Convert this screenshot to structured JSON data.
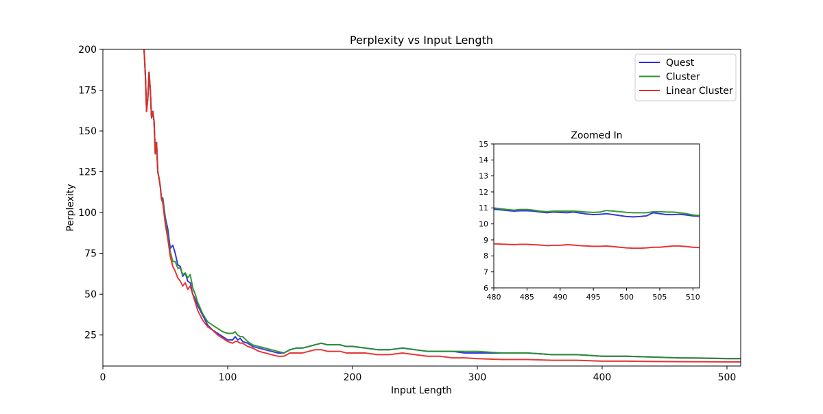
{
  "chart_data": [
    {
      "type": "line",
      "title": "Perplexity vs Input Length",
      "xlabel": "Input Length",
      "ylabel": "Perplexity",
      "xlim": [
        0,
        511
      ],
      "ylim": [
        6,
        200
      ],
      "xticks": [
        0,
        100,
        200,
        300,
        400,
        500
      ],
      "yticks": [
        25,
        50,
        75,
        100,
        125,
        150,
        175,
        200
      ],
      "grid": false,
      "legend": "top-right",
      "series": [
        {
          "name": "Quest",
          "color": "#2b2be0",
          "x": [
            33,
            34,
            35,
            36,
            37,
            38,
            39,
            40,
            41,
            42,
            43,
            44,
            45,
            46,
            47,
            48,
            50,
            52,
            54,
            56,
            58,
            60,
            62,
            64,
            66,
            68,
            70,
            72,
            74,
            76,
            80,
            84,
            88,
            92,
            96,
            100,
            104,
            106,
            108,
            110,
            112,
            116,
            120,
            125,
            130,
            135,
            140,
            145,
            150,
            155,
            160,
            165,
            170,
            175,
            180,
            185,
            190,
            195,
            200,
            210,
            220,
            230,
            240,
            250,
            260,
            270,
            280,
            290,
            300,
            320,
            340,
            360,
            380,
            400,
            420,
            440,
            460,
            480,
            500,
            511
          ],
          "y": [
            200,
            185,
            162,
            170,
            186,
            175,
            158,
            162,
            156,
            136,
            143,
            125,
            121,
            116,
            108,
            109,
            97,
            90,
            78,
            80,
            75,
            68,
            67,
            61,
            63,
            58,
            57,
            50,
            47,
            43,
            37,
            31,
            28,
            26,
            24,
            22,
            22,
            24,
            22,
            23,
            21,
            20,
            18,
            17,
            16,
            15,
            14,
            14,
            16,
            17,
            17,
            18,
            19,
            20,
            19,
            19,
            19,
            18,
            18,
            17,
            16,
            16,
            17,
            16,
            15,
            15,
            15,
            14,
            14,
            14,
            14,
            13,
            13,
            12,
            12,
            11.5,
            11,
            10.8,
            10.5,
            10.5
          ]
        },
        {
          "name": "Cluster",
          "color": "#2a922a",
          "x": [
            33,
            34,
            35,
            36,
            37,
            38,
            39,
            40,
            41,
            42,
            43,
            44,
            45,
            46,
            47,
            48,
            50,
            52,
            54,
            56,
            58,
            60,
            62,
            64,
            66,
            68,
            70,
            72,
            74,
            76,
            80,
            84,
            88,
            92,
            96,
            100,
            104,
            106,
            108,
            110,
            112,
            116,
            120,
            125,
            130,
            135,
            140,
            145,
            150,
            155,
            160,
            165,
            170,
            175,
            180,
            185,
            190,
            195,
            200,
            210,
            220,
            230,
            240,
            250,
            260,
            270,
            280,
            290,
            300,
            320,
            340,
            360,
            380,
            400,
            420,
            440,
            460,
            480,
            500,
            511
          ],
          "y": [
            200,
            185,
            162,
            170,
            186,
            175,
            158,
            162,
            156,
            136,
            143,
            125,
            121,
            116,
            108,
            108,
            95,
            86,
            76,
            70,
            70,
            66,
            66,
            62,
            63,
            60,
            62,
            54,
            50,
            45,
            38,
            33,
            31,
            29,
            27,
            26,
            26,
            27,
            25,
            24,
            24,
            21,
            19,
            18,
            17,
            16,
            15,
            14,
            16,
            17,
            17,
            18,
            19,
            20,
            19,
            19,
            19,
            18,
            18,
            17,
            16,
            16,
            17,
            16,
            15,
            15,
            15,
            15,
            15,
            14,
            14,
            13,
            13,
            12,
            12,
            11.5,
            11,
            10.9,
            10.6,
            10.6
          ]
        },
        {
          "name": "Linear Cluster",
          "color": "#e52a2a",
          "x": [
            33,
            34,
            35,
            36,
            37,
            38,
            39,
            40,
            41,
            42,
            43,
            44,
            45,
            46,
            47,
            48,
            50,
            52,
            54,
            56,
            58,
            60,
            62,
            64,
            66,
            68,
            70,
            72,
            74,
            76,
            80,
            84,
            88,
            92,
            96,
            100,
            104,
            106,
            108,
            110,
            112,
            116,
            120,
            125,
            130,
            135,
            140,
            145,
            150,
            155,
            160,
            165,
            170,
            175,
            180,
            185,
            190,
            195,
            200,
            210,
            220,
            230,
            240,
            250,
            260,
            270,
            280,
            290,
            300,
            320,
            340,
            360,
            380,
            400,
            420,
            440,
            460,
            480,
            500,
            511
          ],
          "y": [
            200,
            185,
            162,
            170,
            186,
            175,
            158,
            162,
            156,
            136,
            143,
            125,
            121,
            116,
            108,
            106,
            93,
            84,
            73,
            67,
            64,
            60,
            58,
            55,
            57,
            53,
            55,
            50,
            45,
            40,
            34,
            30,
            28,
            25,
            23,
            21,
            20,
            21,
            21,
            20,
            20,
            18,
            17,
            15,
            14,
            13,
            12,
            12,
            14,
            14,
            14,
            15,
            16,
            16,
            15,
            15,
            15,
            14,
            14,
            14,
            13,
            13,
            14,
            13,
            12,
            12,
            11,
            11,
            10.5,
            10,
            10,
            9.5,
            9.5,
            9,
            9,
            8.8,
            8.7,
            8.6,
            8.5,
            8.5
          ]
        }
      ]
    },
    {
      "type": "line",
      "title": "Zoomed In",
      "xlim": [
        480,
        511
      ],
      "ylim": [
        6,
        15
      ],
      "xticks": [
        480,
        485,
        490,
        495,
        500,
        505,
        510
      ],
      "yticks": [
        6,
        7,
        8,
        9,
        10,
        11,
        12,
        13,
        14,
        15
      ],
      "grid": false,
      "series": [
        {
          "name": "Quest",
          "color": "#2b2be0",
          "x": [
            480,
            481,
            482,
            483,
            484,
            485,
            486,
            487,
            488,
            489,
            490,
            491,
            492,
            493,
            494,
            495,
            496,
            497,
            498,
            499,
            500,
            501,
            502,
            503,
            504,
            505,
            506,
            507,
            508,
            509,
            510,
            511
          ],
          "y": [
            10.92,
            10.88,
            10.84,
            10.8,
            10.82,
            10.82,
            10.8,
            10.74,
            10.7,
            10.74,
            10.72,
            10.7,
            10.74,
            10.68,
            10.62,
            10.58,
            10.6,
            10.64,
            10.58,
            10.52,
            10.46,
            10.44,
            10.46,
            10.5,
            10.7,
            10.64,
            10.58,
            10.58,
            10.6,
            10.56,
            10.5,
            10.48
          ]
        },
        {
          "name": "Cluster",
          "color": "#2a922a",
          "x": [
            480,
            481,
            482,
            483,
            484,
            485,
            486,
            487,
            488,
            489,
            490,
            491,
            492,
            493,
            494,
            495,
            496,
            497,
            498,
            499,
            500,
            501,
            502,
            503,
            504,
            505,
            506,
            507,
            508,
            509,
            510,
            511
          ],
          "y": [
            11.0,
            10.95,
            10.9,
            10.86,
            10.9,
            10.9,
            10.86,
            10.8,
            10.76,
            10.8,
            10.8,
            10.8,
            10.8,
            10.78,
            10.74,
            10.72,
            10.74,
            10.84,
            10.8,
            10.76,
            10.72,
            10.7,
            10.7,
            10.7,
            10.76,
            10.76,
            10.74,
            10.74,
            10.7,
            10.64,
            10.56,
            10.52
          ]
        },
        {
          "name": "Linear Cluster",
          "color": "#e52a2a",
          "x": [
            480,
            481,
            482,
            483,
            484,
            485,
            486,
            487,
            488,
            489,
            490,
            491,
            492,
            493,
            494,
            495,
            496,
            497,
            498,
            499,
            500,
            501,
            502,
            503,
            504,
            505,
            506,
            507,
            508,
            509,
            510,
            511
          ],
          "y": [
            8.76,
            8.74,
            8.72,
            8.7,
            8.72,
            8.72,
            8.7,
            8.68,
            8.64,
            8.66,
            8.66,
            8.7,
            8.68,
            8.64,
            8.62,
            8.6,
            8.6,
            8.62,
            8.58,
            8.54,
            8.5,
            8.48,
            8.48,
            8.5,
            8.54,
            8.54,
            8.58,
            8.62,
            8.62,
            8.58,
            8.54,
            8.52
          ]
        }
      ]
    }
  ]
}
